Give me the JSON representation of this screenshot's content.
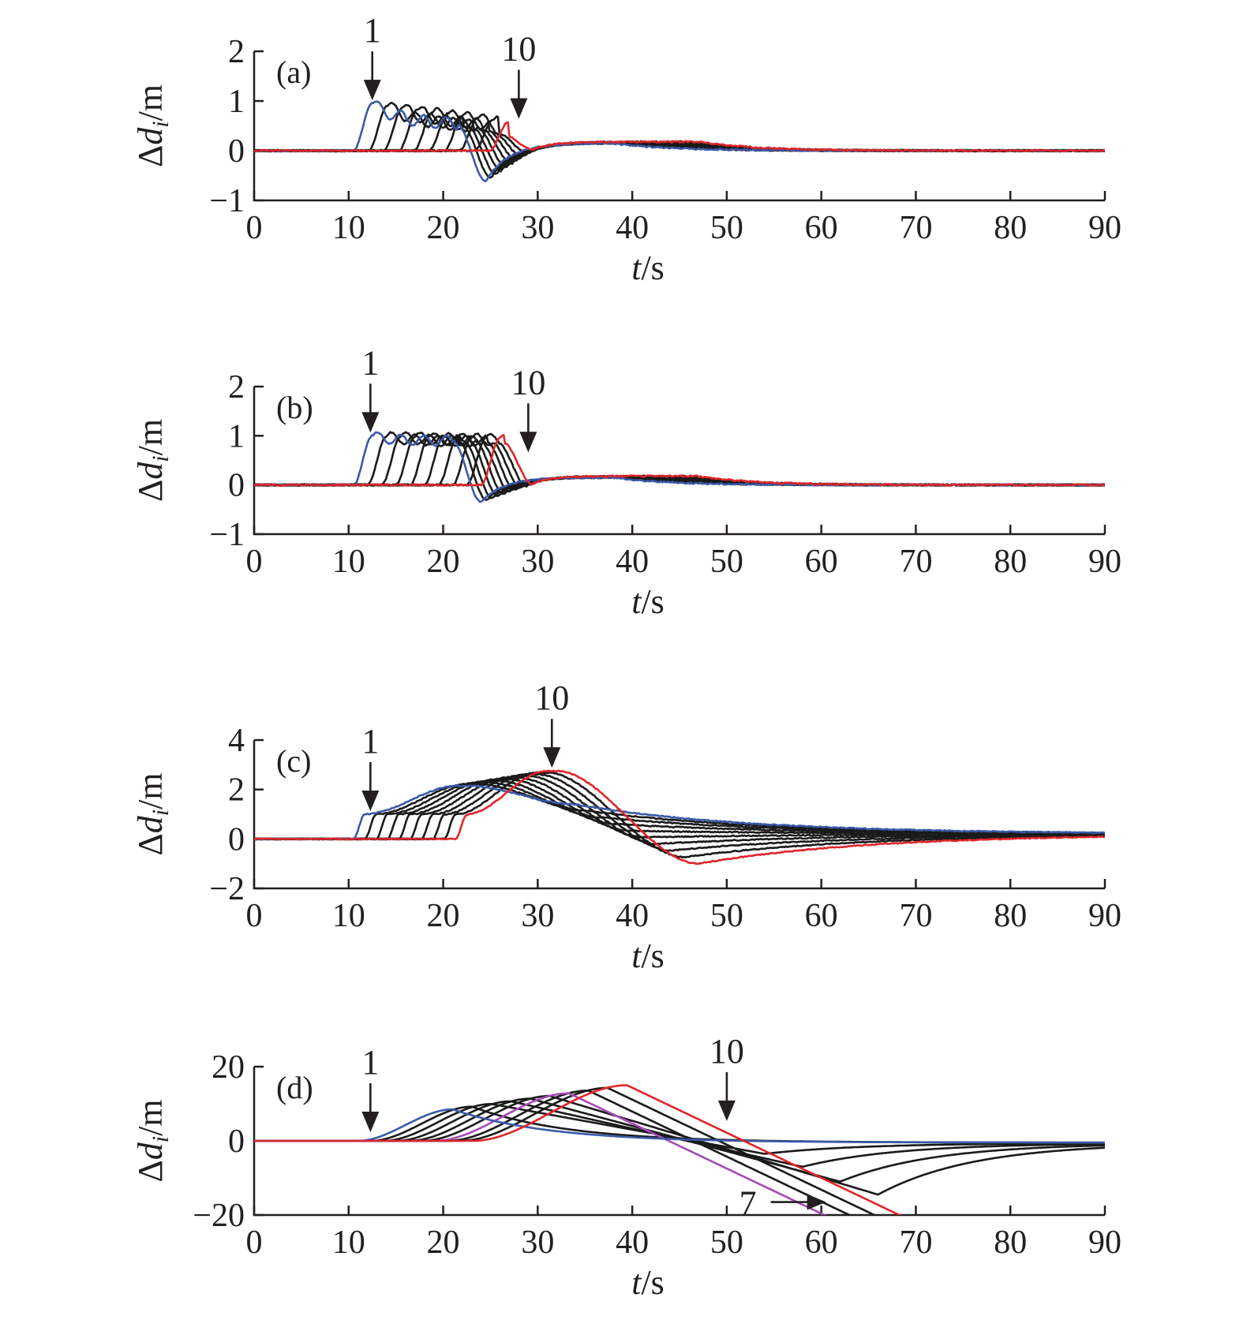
{
  "colors": {
    "axis": "#231f20",
    "follower": "#1a1a1a",
    "first": "#3a5aa8",
    "last": "#e0262a",
    "highlight": "#a64ab8"
  },
  "chart_data": [
    {
      "type": "line",
      "panel": "(a)",
      "xlabel_italic": "t",
      "xlabel_unit": "/s",
      "ylabel_prefix": "Δ",
      "ylabel_italic": "d",
      "ylabel_sub": "i",
      "ylabel_unit": "/m",
      "xlim": [
        0,
        90
      ],
      "ylim": [
        -1,
        2
      ],
      "xticks": [
        "0",
        "10",
        "20",
        "30",
        "40",
        "50",
        "60",
        "70",
        "80",
        "90"
      ],
      "yticks": [
        "−1",
        "0",
        "1",
        "2"
      ],
      "ytick_values": [
        -1,
        0,
        1,
        2
      ],
      "model": "osc",
      "vehicles": 10,
      "first_start": 10.5,
      "start_step": 1.6,
      "peak_first": 0.95,
      "peak_last": 0.58,
      "dip_first": -0.62,
      "ripple": 0.12,
      "noise": 0.015,
      "annotations": [
        {
          "label": "1",
          "x": 12.5,
          "y": 0.95
        },
        {
          "label": "10",
          "x": 28.0,
          "y": 0.58
        }
      ]
    },
    {
      "type": "line",
      "panel": "(b)",
      "xlabel_italic": "t",
      "xlabel_unit": "/s",
      "ylabel_prefix": "Δ",
      "ylabel_italic": "d",
      "ylabel_sub": "i",
      "ylabel_unit": "/m",
      "xlim": [
        0,
        90
      ],
      "ylim": [
        -1,
        2
      ],
      "xticks": [
        "0",
        "10",
        "20",
        "30",
        "40",
        "50",
        "60",
        "70",
        "80",
        "90"
      ],
      "yticks": [
        "−1",
        "0",
        "1",
        "2"
      ],
      "ytick_values": [
        -1,
        0,
        1,
        2
      ],
      "model": "plateau",
      "vehicles": 10,
      "first_start": 10.5,
      "start_step": 1.5,
      "peak_first": 1.0,
      "peak_last": 0.95,
      "dip_first": -0.35,
      "ripple": 0.1,
      "noise": 0.015,
      "annotations": [
        {
          "label": "1",
          "x": 12.3,
          "y": 1.0
        },
        {
          "label": "10",
          "x": 29.0,
          "y": 0.6
        }
      ]
    },
    {
      "type": "line",
      "panel": "(c)",
      "xlabel_italic": "t",
      "xlabel_unit": "/s",
      "ylabel_prefix": "Δ",
      "ylabel_italic": "d",
      "ylabel_sub": "i",
      "ylabel_unit": "/m",
      "xlim": [
        0,
        90
      ],
      "ylim": [
        -2,
        4
      ],
      "xticks": [
        "0",
        "10",
        "20",
        "30",
        "40",
        "50",
        "60",
        "70",
        "80",
        "90"
      ],
      "yticks": [
        "−2",
        "0",
        "2",
        "4"
      ],
      "ytick_values": [
        -2,
        0,
        2,
        4
      ],
      "model": "ramp",
      "vehicles": 10,
      "first_start": 10.5,
      "start_step": 1.2,
      "peak_first": 2.15,
      "peak_last": 2.75,
      "dip_first": 1.4,
      "dip_last": -1.0,
      "noise": 0.02,
      "annotations": [
        {
          "label": "1",
          "x": 12.3,
          "y": 1.0
        },
        {
          "label": "10",
          "x": 31.5,
          "y": 2.75
        }
      ]
    },
    {
      "type": "line",
      "panel": "(d)",
      "xlabel_italic": "t",
      "xlabel_unit": "/s",
      "ylabel_prefix": "Δ",
      "ylabel_italic": "d",
      "ylabel_sub": "i",
      "ylabel_unit": "/m",
      "xlim": [
        0,
        90
      ],
      "ylim": [
        -20,
        20
      ],
      "xticks": [
        "0",
        "10",
        "20",
        "30",
        "40",
        "50",
        "60",
        "70",
        "80",
        "90"
      ],
      "yticks": [
        "−20",
        "0",
        "20"
      ],
      "ytick_values": [
        -20,
        0,
        20
      ],
      "model": "diverge",
      "vehicles": 10,
      "first_start": 11.0,
      "start_step": 1.35,
      "peak_first": 8.5,
      "peak_last": 15.0,
      "highlight_vehicle": 7,
      "noise": 0.0,
      "annotations": [
        {
          "label": "1",
          "x": 12.3,
          "y": 1.5
        },
        {
          "label": "10",
          "x": 50.0,
          "y": 4.5
        },
        {
          "label": "7",
          "x": 60.5,
          "y": -16.5,
          "side": "left"
        }
      ]
    }
  ]
}
